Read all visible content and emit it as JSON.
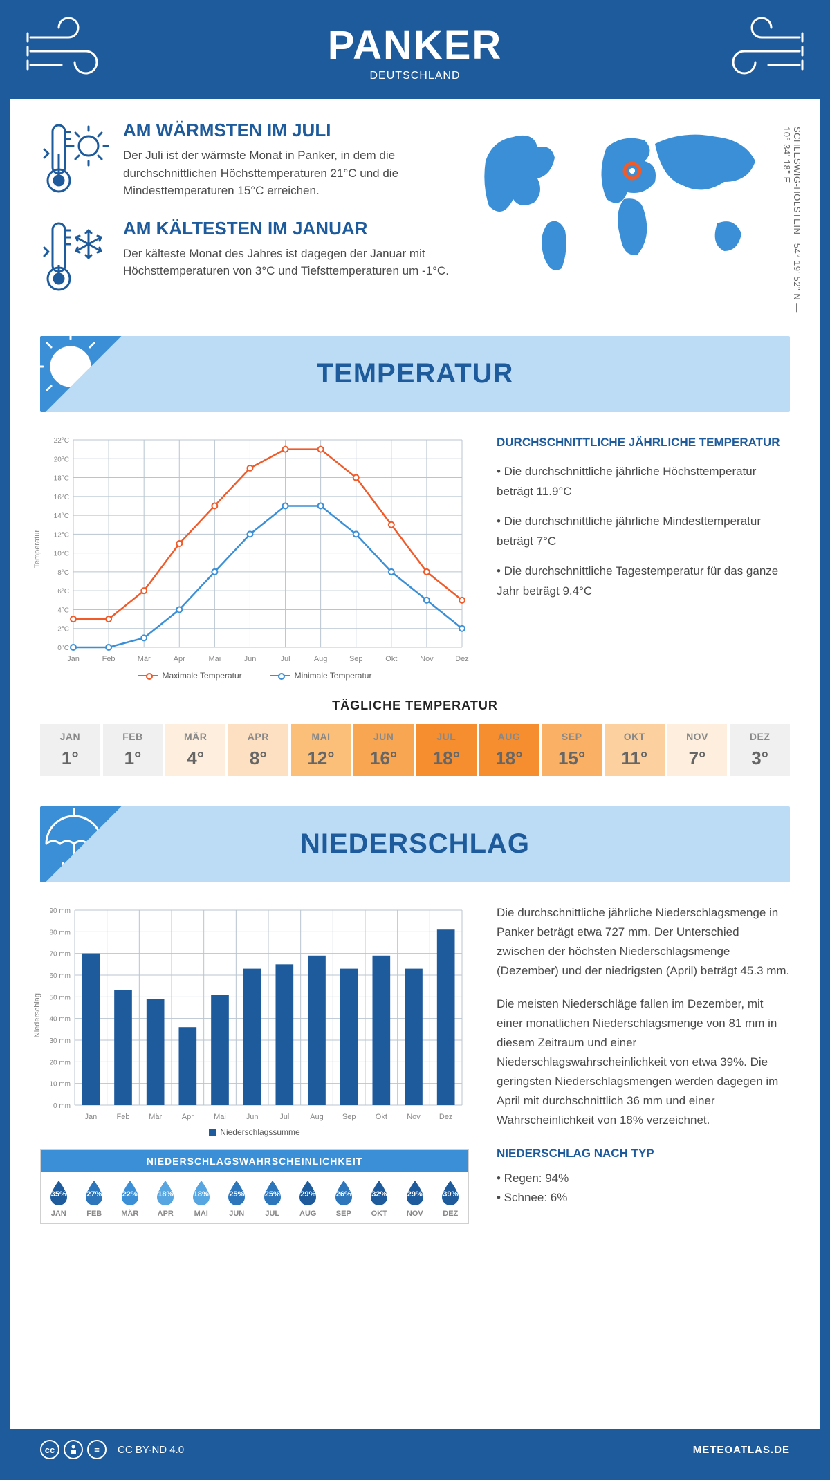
{
  "header": {
    "title": "PANKER",
    "subtitle": "DEUTSCHLAND"
  },
  "colors": {
    "brand": "#1e5b9c",
    "banner": "#bcdcf5",
    "banner_accent": "#3b8fd6",
    "max_line": "#f15a29",
    "min_line": "#3b8fd6",
    "grid": "#b8c5d0",
    "axis": "#888",
    "bar": "#1e5b9c"
  },
  "coords": {
    "text": "54° 19' 52\" N — 10° 34' 18\" E",
    "region": "SCHLESWIG-HOLSTEIN"
  },
  "facts": {
    "warm": {
      "title": "AM WÄRMSTEN IM JULI",
      "body": "Der Juli ist der wärmste Monat in Panker, in dem die durchschnittlichen Höchsttemperaturen 21°C und die Mindesttemperaturen 15°C erreichen."
    },
    "cold": {
      "title": "AM KÄLTESTEN IM JANUAR",
      "body": "Der kälteste Monat des Jahres ist dagegen der Januar mit Höchsttemperaturen von 3°C und Tiefsttemperaturen um -1°C."
    }
  },
  "section_titles": {
    "temp": "TEMPERATUR",
    "precip": "NIEDERSCHLAG"
  },
  "months_short": [
    "Jan",
    "Feb",
    "Mär",
    "Apr",
    "Mai",
    "Jun",
    "Jul",
    "Aug",
    "Sep",
    "Okt",
    "Nov",
    "Dez"
  ],
  "months_caps": [
    "JAN",
    "FEB",
    "MÄR",
    "APR",
    "MAI",
    "JUN",
    "JUL",
    "AUG",
    "SEP",
    "OKT",
    "NOV",
    "DEZ"
  ],
  "temp_chart": {
    "ylabel": "Temperatur",
    "ylim": [
      0,
      22
    ],
    "ytick_step": 2,
    "ytick_suffix": "°C",
    "max_series": [
      3,
      3,
      6,
      11,
      15,
      19,
      21,
      21,
      18,
      13,
      8,
      5
    ],
    "min_series": [
      0,
      0,
      1,
      4,
      8,
      12,
      15,
      15,
      12,
      8,
      5,
      2
    ],
    "legend": {
      "max": "Maximale Temperatur",
      "min": "Minimale Temperatur"
    }
  },
  "temp_text": {
    "heading": "DURCHSCHNITTLICHE JÄHRLICHE TEMPERATUR",
    "b1": "• Die durchschnittliche jährliche Höchsttemperatur beträgt 11.9°C",
    "b2": "• Die durchschnittliche jährliche Mindesttemperatur beträgt 7°C",
    "b3": "• Die durchschnittliche Tagestemperatur für das ganze Jahr beträgt 9.4°C"
  },
  "daily_temp": {
    "title": "TÄGLICHE TEMPERATUR",
    "values": [
      1,
      1,
      4,
      8,
      12,
      16,
      18,
      18,
      15,
      11,
      7,
      3
    ],
    "cell_colors": [
      "#f0f0f0",
      "#f0f0f0",
      "#fdeedd",
      "#fde0c2",
      "#fbbf7a",
      "#f9a653",
      "#f68d2e",
      "#f68d2e",
      "#fab166",
      "#fcd19f",
      "#fdeedd",
      "#f0f0f0"
    ]
  },
  "precip_chart": {
    "ylabel": "Niederschlag",
    "ylim": [
      0,
      90
    ],
    "ytick_step": 10,
    "ytick_suffix": " mm",
    "values": [
      70,
      53,
      49,
      36,
      51,
      63,
      65,
      69,
      63,
      69,
      63,
      81
    ],
    "bar_width": 0.55,
    "legend": "Niederschlagssumme"
  },
  "prob": {
    "title": "NIEDERSCHLAGSWAHRSCHEINLICHKEIT",
    "values": [
      35,
      27,
      22,
      18,
      18,
      25,
      25,
      29,
      26,
      32,
      29,
      39
    ],
    "drop_colors": [
      "#1e5b9c",
      "#2d76bc",
      "#3b8fd6",
      "#57a5e1",
      "#57a5e1",
      "#2d76bc",
      "#2d76bc",
      "#1e5b9c",
      "#2d76bc",
      "#1e5b9c",
      "#1e5b9c",
      "#1e5b9c"
    ]
  },
  "precip_text": {
    "p1": "Die durchschnittliche jährliche Niederschlagsmenge in Panker beträgt etwa 727 mm. Der Unterschied zwischen der höchsten Niederschlagsmenge (Dezember) und der niedrigsten (April) beträgt 45.3 mm.",
    "p2": "Die meisten Niederschläge fallen im Dezember, mit einer monatlichen Niederschlagsmenge von 81 mm in diesem Zeitraum und einer Niederschlagswahrscheinlichkeit von etwa 39%. Die geringsten Niederschlagsmengen werden dagegen im April mit durchschnittlich 36 mm und einer Wahrscheinlichkeit von 18% verzeichnet.",
    "type_heading": "NIEDERSCHLAG NACH TYP",
    "rain": "• Regen: 94%",
    "snow": "• Schnee: 6%"
  },
  "footer": {
    "license": "CC BY-ND 4.0",
    "site": "METEOATLAS.DE"
  }
}
